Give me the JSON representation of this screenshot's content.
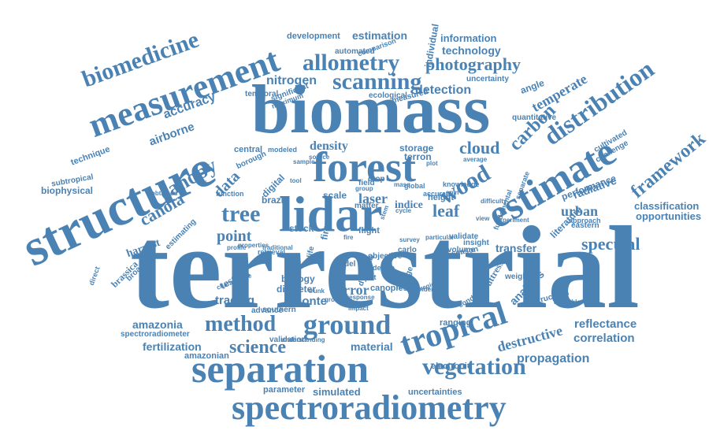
{
  "color": "#4a82b4",
  "words": [
    "terrestrial",
    "biomass",
    "structure",
    "lidar",
    "forest",
    "measurement",
    "estimate",
    "separation",
    "spectroradiometry",
    "tropical",
    "ground",
    "distribution",
    "allometry",
    "scanning",
    "photography",
    "biomedicine",
    "tree",
    "wood",
    "method",
    "canopy",
    "canola",
    "vegetation",
    "carbon",
    "framework",
    "point",
    "cloud",
    "leaf",
    "spectral",
    "science",
    "data",
    "nitrogen",
    "detection",
    "accuracy",
    "temperate",
    "urban",
    "laser",
    "density",
    "radiative",
    "fertilization",
    "destructive",
    "amazonia",
    "reflectance",
    "propagation",
    "correlation",
    "information",
    "technology",
    "estimation",
    "development",
    "airborne",
    "brassica",
    "testing",
    "tracing",
    "error",
    "material",
    "biology",
    "monte",
    "transfer",
    "analysis",
    "classification",
    "opportunities",
    "biophysical",
    "harvest",
    "indice",
    "scale",
    "height",
    "uncertainty",
    "uncertainties",
    "simulated",
    "parameter",
    "validation",
    "diameter",
    "canopies",
    "ranging",
    "buttress",
    "electronic",
    "amazonian",
    "spectroradiometer",
    "southern",
    "advance",
    "technique",
    "subtropical",
    "estimating",
    "broadleaf",
    "brazil",
    "digital",
    "central",
    "borough",
    "storage",
    "terron",
    "angle",
    "automated",
    "comparison",
    "individual",
    "temporal",
    "significant",
    "maximum",
    "ecological",
    "measured",
    "quantitative",
    "cultivated",
    "challenge",
    "performance",
    "literature",
    "eastern",
    "approach",
    "structural",
    "weighing",
    "condition",
    "objective",
    "model",
    "carlo",
    "matter",
    "field",
    "crop",
    "stock",
    "firme",
    "flight",
    "life",
    "modeled",
    "function",
    "obtained",
    "traditional",
    "profile",
    "properties",
    "retrieval",
    "device",
    "result",
    "remote",
    "dynamic",
    "range",
    "insight",
    "validate",
    "volume",
    "season",
    "separate",
    "fundamental",
    "knowledge",
    "accurate",
    "global",
    "direct",
    "understanding",
    "characterize",
    "particular",
    "growth",
    "response",
    "impact",
    "available",
    "underlying",
    "region",
    "difficulty",
    "experiment",
    "view",
    "ratio",
    "cycle",
    "spin",
    "average",
    "mass",
    "group",
    "sample",
    "source",
    "fire",
    "stand",
    "stem",
    "plot",
    "tool",
    "area",
    "trunk",
    "survey"
  ]
}
